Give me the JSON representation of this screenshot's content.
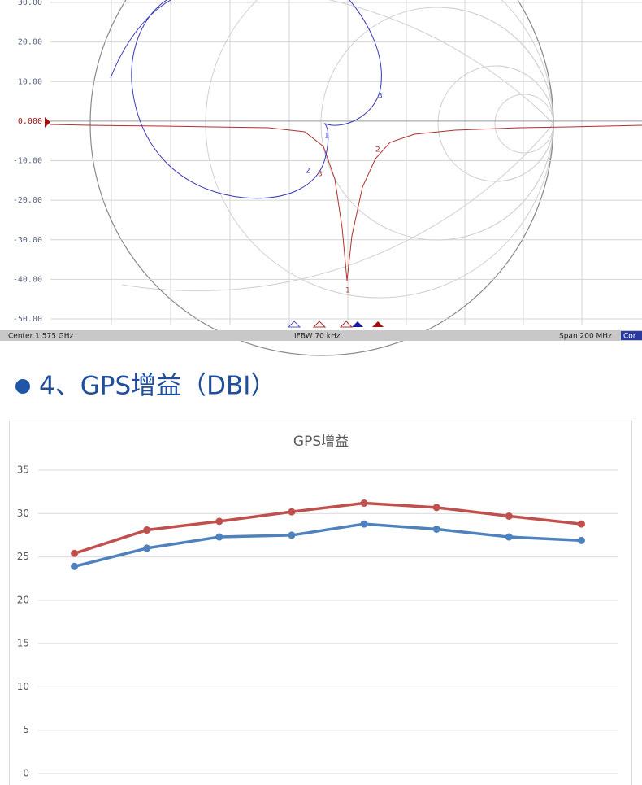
{
  "chart_data": [
    {
      "type": "vna",
      "yticks": [
        {
          "value": 30,
          "label": "30.00"
        },
        {
          "value": 20,
          "label": "20.00"
        },
        {
          "value": 10,
          "label": "10.00"
        },
        {
          "value": 0,
          "label": "0.000"
        },
        {
          "value": -10,
          "label": "-10.00"
        },
        {
          "value": -20,
          "label": "-20.00"
        },
        {
          "value": -30,
          "label": "-30.00"
        },
        {
          "value": -40,
          "label": "-40.00"
        },
        {
          "value": -50,
          "label": "-50.00"
        }
      ],
      "ylim": [
        -50,
        30
      ],
      "center": "Center 1.575 GHz",
      "ifbw": "IFBW 70 kHz",
      "span": "Span 200 MHz",
      "cor": "Cor",
      "markers": [
        "1",
        "2",
        "3"
      ]
    },
    {
      "type": "line",
      "title": "GPS增益",
      "categories": [
        null,
        null,
        null,
        null,
        null,
        null,
        null,
        null
      ],
      "series": [
        {
          "color": "#c0504d",
          "values": [
            25.4,
            28.1,
            29.1,
            30.2,
            31.2,
            30.7,
            29.7,
            28.8
          ]
        },
        {
          "color": "#4f81bd",
          "values": [
            23.9,
            26.0,
            27.3,
            27.5,
            28.8,
            28.2,
            27.3,
            26.9
          ]
        }
      ],
      "ylim": [
        0,
        35
      ],
      "yticks": [
        0,
        5,
        10,
        15,
        20,
        25,
        30,
        35
      ],
      "grid": true
    }
  ],
  "heading": "4、GPS增益（DBI）"
}
